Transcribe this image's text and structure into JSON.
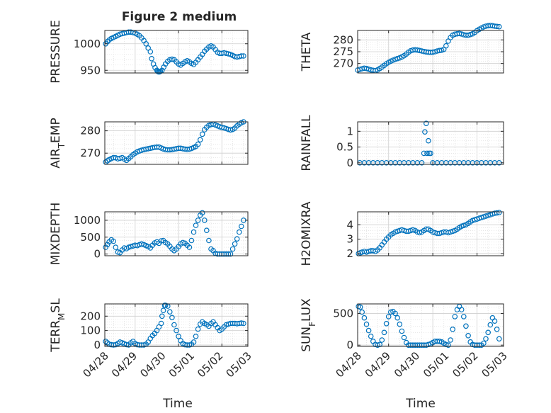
{
  "figure": {
    "title": "Figure 2 medium",
    "xlabel": "Time",
    "x_ticks": [
      "04/28",
      "04/29",
      "04/30",
      "05/01",
      "05/02",
      "05/03"
    ],
    "x_tick_values": [
      0,
      1,
      2,
      3,
      4,
      5
    ],
    "marker_color": "#0072BD",
    "axis_color": "#262626",
    "grid_color": "#dcdcdc"
  },
  "chart_data": [
    {
      "type": "scatter",
      "panel": "pressure",
      "ylabel": "PRESSURE",
      "yticks": [
        "950",
        "1000"
      ],
      "ytick_values": [
        950,
        1000
      ],
      "ylim": [
        945,
        1025
      ],
      "xlim": [
        0.3,
        3.6
      ],
      "grid": true,
      "x": [
        0.32,
        0.36,
        0.4,
        0.45,
        0.5,
        0.55,
        0.6,
        0.65,
        0.7,
        0.75,
        0.8,
        0.85,
        0.9,
        0.95,
        1.0,
        1.05,
        1.1,
        1.15,
        1.2,
        1.25,
        1.3,
        1.35,
        1.38,
        1.42,
        1.46,
        1.5,
        1.52,
        1.54,
        1.56,
        1.58,
        1.62,
        1.66,
        1.7,
        1.75,
        1.8,
        1.85,
        1.9,
        1.95,
        2.0,
        2.05,
        2.1,
        2.15,
        2.2,
        2.25,
        2.3,
        2.35,
        2.4,
        2.45,
        2.5,
        2.55,
        2.6,
        2.65,
        2.7,
        2.75,
        2.8,
        2.85,
        2.9,
        2.95,
        3.0,
        3.05,
        3.1,
        3.15,
        3.2,
        3.25,
        3.3,
        3.35,
        3.4,
        3.45,
        3.5
      ],
      "y": [
        1000,
        1004,
        1007,
        1010,
        1012,
        1014,
        1016,
        1018,
        1019,
        1020,
        1021,
        1022,
        1022,
        1021,
        1020,
        1018,
        1015,
        1011,
        1006,
        1000,
        992,
        985,
        972,
        962,
        955,
        950,
        948,
        947,
        947,
        948,
        950,
        956,
        962,
        967,
        970,
        971,
        970,
        966,
        962,
        960,
        963,
        966,
        968,
        966,
        963,
        961,
        965,
        970,
        975,
        980,
        986,
        990,
        994,
        996,
        994,
        989,
        984,
        982,
        982,
        983,
        982,
        981,
        980,
        978,
        976,
        975,
        976,
        977,
        977
      ]
    },
    {
      "type": "scatter",
      "panel": "theta",
      "ylabel": "THETA",
      "yticks": [
        "270",
        "275",
        "280"
      ],
      "ytick_values": [
        270,
        275,
        280
      ],
      "ylim": [
        266,
        284
      ],
      "xlim": [
        0.3,
        3.6
      ],
      "grid": true,
      "x": [
        0.3,
        0.35,
        0.4,
        0.45,
        0.5,
        0.55,
        0.6,
        0.65,
        0.7,
        0.75,
        0.8,
        0.85,
        0.9,
        0.95,
        1.0,
        1.05,
        1.1,
        1.15,
        1.2,
        1.25,
        1.3,
        1.35,
        1.4,
        1.45,
        1.5,
        1.55,
        1.6,
        1.65,
        1.7,
        1.75,
        1.8,
        1.85,
        1.9,
        1.95,
        2.0,
        2.05,
        2.1,
        2.15,
        2.2,
        2.25,
        2.3,
        2.35,
        2.4,
        2.45,
        2.5,
        2.55,
        2.6,
        2.65,
        2.7,
        2.75,
        2.8,
        2.85,
        2.9,
        2.95,
        3.0,
        3.05,
        3.1,
        3.15,
        3.2,
        3.25,
        3.3,
        3.35,
        3.4,
        3.45,
        3.5
      ],
      "y": [
        267.2,
        267.5,
        267.8,
        268,
        267.9,
        267.6,
        267.3,
        267.1,
        267,
        267.3,
        267.9,
        268.5,
        269.2,
        269.9,
        270.5,
        271,
        271.4,
        271.8,
        272.1,
        272.4,
        272.8,
        273.3,
        274,
        274.8,
        275.4,
        275.7,
        275.8,
        275.7,
        275.5,
        275.3,
        275.1,
        274.9,
        274.8,
        274.7,
        274.8,
        275,
        275.3,
        275.5,
        275.6,
        276,
        277.5,
        279.5,
        281,
        282,
        282.4,
        282.6,
        282.7,
        282.5,
        282.2,
        282,
        282,
        282.3,
        282.6,
        283.2,
        283.9,
        284.5,
        285,
        285.5,
        285.8,
        286,
        286.1,
        286,
        285.8,
        285.7,
        285.6
      ]
    },
    {
      "type": "scatter",
      "panel": "air_temp",
      "ylabel": "AIR_TEMP",
      "yticks": [
        "270",
        "280"
      ],
      "ytick_values": [
        270,
        280
      ],
      "ylim": [
        265,
        284
      ],
      "xlim": [
        0.3,
        3.6
      ],
      "grid": true,
      "x": [
        0.32,
        0.36,
        0.4,
        0.45,
        0.5,
        0.55,
        0.6,
        0.65,
        0.7,
        0.75,
        0.8,
        0.85,
        0.9,
        0.95,
        1.0,
        1.05,
        1.1,
        1.15,
        1.2,
        1.25,
        1.3,
        1.35,
        1.4,
        1.45,
        1.5,
        1.55,
        1.6,
        1.65,
        1.7,
        1.75,
        1.8,
        1.85,
        1.9,
        1.95,
        2.0,
        2.05,
        2.1,
        2.15,
        2.2,
        2.25,
        2.3,
        2.35,
        2.4,
        2.45,
        2.5,
        2.55,
        2.6,
        2.65,
        2.7,
        2.75,
        2.8,
        2.85,
        2.9,
        2.95,
        3.0,
        3.05,
        3.1,
        3.15,
        3.2,
        3.25,
        3.3,
        3.35,
        3.4,
        3.45,
        3.5
      ],
      "y": [
        266,
        266.6,
        267.1,
        267.6,
        268,
        267.9,
        267.5,
        267.7,
        268,
        267.4,
        266.8,
        267.6,
        268.4,
        269.3,
        270,
        270.6,
        271,
        271.3,
        271.6,
        271.8,
        272,
        272.2,
        272.4,
        272.6,
        272.7,
        272.7,
        272.3,
        271.9,
        271.6,
        271.5,
        271.5,
        271.6,
        271.8,
        272,
        272.2,
        272.2,
        272,
        271.8,
        271.7,
        271.8,
        272.1,
        272.5,
        273,
        274,
        276,
        278.5,
        280.5,
        281.6,
        282.4,
        282.8,
        283,
        282.6,
        282.2,
        281.8,
        281.5,
        281.3,
        281,
        280.6,
        280.4,
        280.6,
        281.2,
        282.2,
        283,
        283.6,
        284
      ]
    },
    {
      "type": "scatter",
      "panel": "rainfall",
      "ylabel": "RAINFALL",
      "yticks": [
        "0",
        "0.5",
        "1"
      ],
      "ytick_values": [
        0,
        0.5,
        1
      ],
      "ylim": [
        -0.05,
        1.3
      ],
      "xlim": [
        0.3,
        3.6
      ],
      "grid": true,
      "x": [
        0.35,
        0.45,
        0.55,
        0.65,
        0.75,
        0.85,
        0.95,
        1.05,
        1.15,
        1.25,
        1.35,
        1.45,
        1.55,
        1.65,
        1.75,
        1.8,
        1.82,
        1.85,
        1.87,
        1.9,
        1.92,
        1.95,
        2.0,
        2.1,
        2.2,
        2.3,
        2.4,
        2.5,
        2.6,
        2.7,
        2.8,
        2.9,
        3.0,
        3.1,
        3.2,
        3.3,
        3.4,
        3.5
      ],
      "y": [
        0,
        0,
        0,
        0,
        0,
        0,
        0,
        0,
        0,
        0,
        0,
        0,
        0,
        0,
        0,
        0.3,
        0.98,
        1.25,
        0.3,
        0.7,
        0.3,
        0.3,
        0,
        0,
        0,
        0,
        0,
        0,
        0,
        0,
        0,
        0,
        0,
        0,
        0,
        0,
        0,
        0
      ]
    },
    {
      "type": "scatter",
      "panel": "mixdepth",
      "ylabel": "MIXDEPTH",
      "yticks": [
        "0",
        "500",
        "1000"
      ],
      "ytick_values": [
        0,
        500,
        1000
      ],
      "ylim": [
        -50,
        1250
      ],
      "xlim": [
        0.3,
        3.6
      ],
      "grid": true,
      "x": [
        0.32,
        0.36,
        0.4,
        0.45,
        0.5,
        0.55,
        0.6,
        0.65,
        0.7,
        0.75,
        0.8,
        0.85,
        0.9,
        0.95,
        1.0,
        1.05,
        1.1,
        1.15,
        1.2,
        1.25,
        1.3,
        1.35,
        1.4,
        1.45,
        1.5,
        1.55,
        1.6,
        1.65,
        1.7,
        1.75,
        1.8,
        1.85,
        1.9,
        1.95,
        2.0,
        2.05,
        2.1,
        2.15,
        2.2,
        2.25,
        2.3,
        2.35,
        2.4,
        2.45,
        2.5,
        2.55,
        2.6,
        2.65,
        2.7,
        2.75,
        2.8,
        2.85,
        2.9,
        2.95,
        3.0,
        3.05,
        3.1,
        3.15,
        3.2,
        3.25,
        3.3,
        3.35,
        3.4,
        3.45,
        3.5
      ],
      "y": [
        200,
        280,
        360,
        420,
        380,
        200,
        60,
        40,
        120,
        180,
        160,
        200,
        220,
        240,
        260,
        250,
        280,
        300,
        280,
        250,
        220,
        180,
        260,
        330,
        360,
        320,
        390,
        400,
        340,
        300,
        230,
        150,
        100,
        150,
        220,
        300,
        340,
        320,
        260,
        200,
        400,
        650,
        850,
        1000,
        1150,
        1220,
        1000,
        700,
        400,
        150,
        100,
        20,
        0,
        0,
        0,
        0,
        0,
        0,
        0,
        150,
        300,
        450,
        650,
        820,
        1000
      ]
    },
    {
      "type": "scatter",
      "panel": "h2omixra",
      "ylabel": "H2OMIXRA",
      "yticks": [
        "2",
        "3",
        "4"
      ],
      "ytick_values": [
        2,
        3,
        4
      ],
      "ylim": [
        1.85,
        4.9
      ],
      "xlim": [
        0.3,
        3.6
      ],
      "grid": true,
      "x": [
        0.32,
        0.36,
        0.4,
        0.45,
        0.5,
        0.55,
        0.6,
        0.65,
        0.7,
        0.75,
        0.8,
        0.85,
        0.9,
        0.95,
        1.0,
        1.05,
        1.1,
        1.15,
        1.2,
        1.25,
        1.3,
        1.35,
        1.4,
        1.45,
        1.5,
        1.55,
        1.6,
        1.65,
        1.7,
        1.75,
        1.8,
        1.85,
        1.9,
        1.95,
        2.0,
        2.05,
        2.1,
        2.15,
        2.2,
        2.25,
        2.3,
        2.35,
        2.4,
        2.45,
        2.5,
        2.55,
        2.6,
        2.65,
        2.7,
        2.75,
        2.8,
        2.85,
        2.9,
        2.95,
        3.0,
        3.05,
        3.1,
        3.15,
        3.2,
        3.25,
        3.3,
        3.35,
        3.4,
        3.45,
        3.5
      ],
      "y": [
        2.0,
        2.05,
        2.1,
        2.15,
        2.1,
        2.15,
        2.2,
        2.2,
        2.15,
        2.25,
        2.4,
        2.6,
        2.8,
        3.0,
        3.15,
        3.3,
        3.4,
        3.5,
        3.55,
        3.6,
        3.65,
        3.6,
        3.55,
        3.55,
        3.6,
        3.65,
        3.6,
        3.5,
        3.45,
        3.5,
        3.6,
        3.7,
        3.7,
        3.6,
        3.5,
        3.45,
        3.4,
        3.4,
        3.45,
        3.5,
        3.5,
        3.45,
        3.5,
        3.55,
        3.6,
        3.7,
        3.8,
        3.9,
        3.95,
        4.0,
        4.1,
        4.2,
        4.3,
        4.35,
        4.4,
        4.45,
        4.5,
        4.55,
        4.6,
        4.65,
        4.7,
        4.75,
        4.8,
        4.82,
        4.85
      ]
    },
    {
      "type": "scatter",
      "panel": "terr_msl",
      "ylabel": "TERR_MSL",
      "yticks": [
        "0",
        "100",
        "200"
      ],
      "ytick_values": [
        0,
        100,
        200
      ],
      "ylim": [
        -10,
        285
      ],
      "xlim": [
        0.3,
        3.6
      ],
      "grid": true,
      "x": [
        0.32,
        0.36,
        0.4,
        0.45,
        0.5,
        0.55,
        0.6,
        0.65,
        0.7,
        0.75,
        0.8,
        0.85,
        0.9,
        0.95,
        1.0,
        1.05,
        1.1,
        1.15,
        1.2,
        1.25,
        1.3,
        1.35,
        1.4,
        1.45,
        1.5,
        1.55,
        1.6,
        1.62,
        1.65,
        1.68,
        1.7,
        1.75,
        1.8,
        1.85,
        1.9,
        1.95,
        2.0,
        2.05,
        2.1,
        2.15,
        2.2,
        2.25,
        2.3,
        2.35,
        2.4,
        2.45,
        2.5,
        2.55,
        2.6,
        2.65,
        2.7,
        2.75,
        2.8,
        2.85,
        2.9,
        2.95,
        3.0,
        3.05,
        3.1,
        3.15,
        3.2,
        3.25,
        3.3,
        3.35,
        3.4,
        3.45,
        3.5
      ],
      "y": [
        25,
        15,
        5,
        2,
        0,
        2,
        10,
        20,
        15,
        8,
        3,
        0,
        15,
        25,
        10,
        2,
        0,
        0,
        0,
        5,
        20,
        45,
        65,
        80,
        100,
        125,
        150,
        200,
        240,
        275,
        275,
        270,
        230,
        190,
        140,
        100,
        60,
        30,
        10,
        2,
        0,
        0,
        5,
        20,
        60,
        110,
        145,
        160,
        150,
        140,
        130,
        150,
        160,
        140,
        120,
        100,
        110,
        125,
        140,
        145,
        150,
        150,
        150,
        148,
        150,
        152,
        150
      ]
    },
    {
      "type": "scatter",
      "panel": "sun_flux",
      "ylabel": "SUN_FLUX",
      "yticks": [
        "0",
        "500"
      ],
      "ytick_values": [
        0,
        500
      ],
      "ylim": [
        -20,
        650
      ],
      "xlim": [
        0.3,
        3.6
      ],
      "grid": true,
      "x": [
        0.32,
        0.36,
        0.4,
        0.45,
        0.5,
        0.55,
        0.6,
        0.65,
        0.7,
        0.75,
        0.8,
        0.85,
        0.9,
        0.95,
        1.0,
        1.05,
        1.1,
        1.15,
        1.2,
        1.25,
        1.3,
        1.35,
        1.4,
        1.45,
        1.5,
        1.55,
        1.6,
        1.65,
        1.7,
        1.75,
        1.8,
        1.85,
        1.9,
        1.95,
        2.0,
        2.05,
        2.1,
        2.15,
        2.2,
        2.25,
        2.3,
        2.35,
        2.4,
        2.45,
        2.5,
        2.55,
        2.6,
        2.65,
        2.7,
        2.75,
        2.8,
        2.85,
        2.9,
        2.95,
        3.0,
        3.05,
        3.1,
        3.15,
        3.2,
        3.25,
        3.3,
        3.35,
        3.4,
        3.45,
        3.5
      ],
      "y": [
        610,
        600,
        520,
        430,
        330,
        230,
        140,
        60,
        10,
        0,
        10,
        80,
        200,
        340,
        450,
        520,
        530,
        500,
        430,
        330,
        220,
        120,
        40,
        0,
        0,
        0,
        0,
        0,
        0,
        0,
        0,
        0,
        10,
        20,
        40,
        60,
        60,
        60,
        50,
        30,
        10,
        0,
        80,
        250,
        450,
        560,
        610,
        560,
        450,
        300,
        150,
        50,
        10,
        0,
        0,
        0,
        0,
        30,
        100,
        200,
        320,
        430,
        380,
        250,
        100
      ]
    }
  ]
}
